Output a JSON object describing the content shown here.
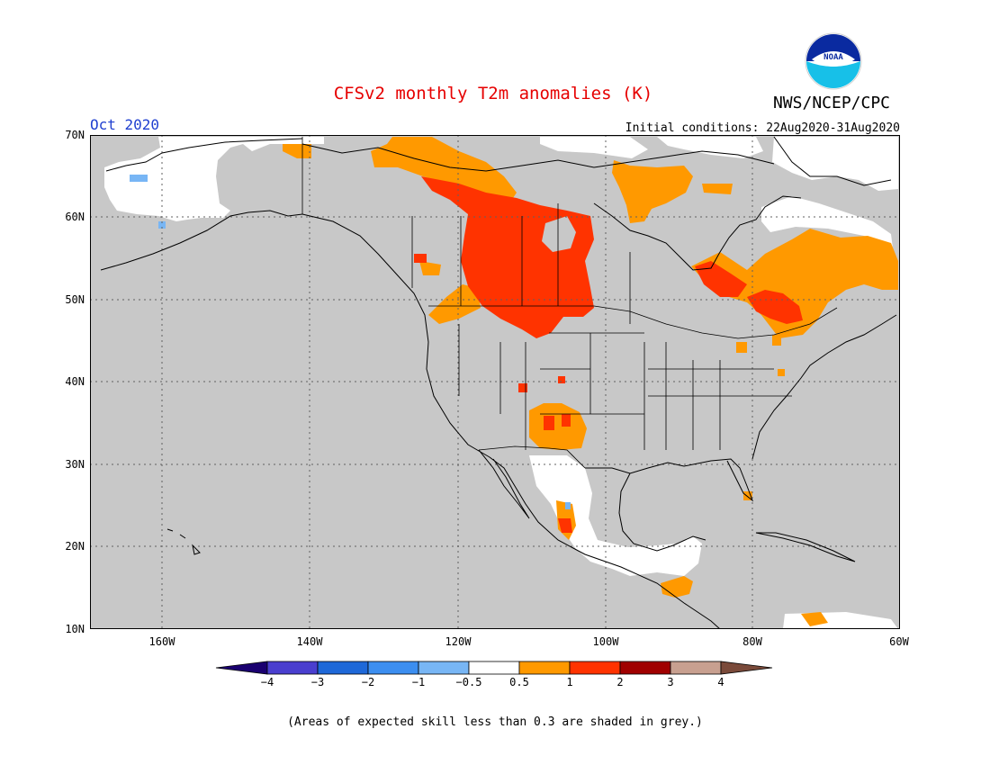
{
  "title": "CFSv2 monthly T2m anomalies (K)",
  "month": "Oct 2020",
  "initial_conditions": "Initial conditions: 22Aug2020-31Aug2020",
  "agency": "NWS/NCEP/CPC",
  "logo_text": "NOAA",
  "footnote": "(Areas of expected skill less than 0.3 are shaded in grey.)",
  "colors": {
    "title": "#e60000",
    "month": "#2040d0",
    "ocean_land_grey": "#c8c8c8",
    "neutral_white": "#ffffff",
    "above_0_5_to_1": "#ff9900",
    "above_1_to_2": "#ff3300",
    "map_lines": "#000000"
  },
  "map": {
    "lon_range": [
      -172,
      -60
    ],
    "lat_range": [
      10,
      70
    ],
    "lon_ticks": [
      "160W",
      "140W",
      "120W",
      "100W",
      "80W",
      "60W"
    ],
    "lat_ticks": [
      "10N",
      "20N",
      "30N",
      "40N",
      "50N",
      "60N",
      "70N"
    ],
    "grid": "dotted",
    "regions": [
      {
        "name": "alaska-interior-neutral",
        "category": "neutral"
      },
      {
        "name": "canadian-prairies-warm-1-2",
        "category": "above_1_to_2"
      },
      {
        "name": "northwest-territories-warm",
        "category": "above_0_5_to_1"
      },
      {
        "name": "hudson-bay-west-warm",
        "category": "above_0_5_to_1"
      },
      {
        "name": "quebec-labrador-warm",
        "category": "above_0_5_to_1"
      },
      {
        "name": "quebec-core-warm-1-2",
        "category": "above_1_to_2"
      },
      {
        "name": "southwest-us-warm",
        "category": "above_0_5_to_1"
      },
      {
        "name": "mexico-neutral",
        "category": "neutral"
      },
      {
        "name": "central-america-warm",
        "category": "above_0_5_to_1"
      }
    ]
  },
  "legend": {
    "labels": [
      "−4",
      "−3",
      "−2",
      "−1",
      "−0.5",
      "0.5",
      "1",
      "2",
      "3",
      "4"
    ],
    "colors": [
      "#1a0070",
      "#4a3fcf",
      "#1e68d8",
      "#3c8ef0",
      "#78b6f5",
      "#ffffff",
      "#ff9900",
      "#ff3300",
      "#a00000",
      "#c8a090",
      "#7a4a3a"
    ]
  }
}
